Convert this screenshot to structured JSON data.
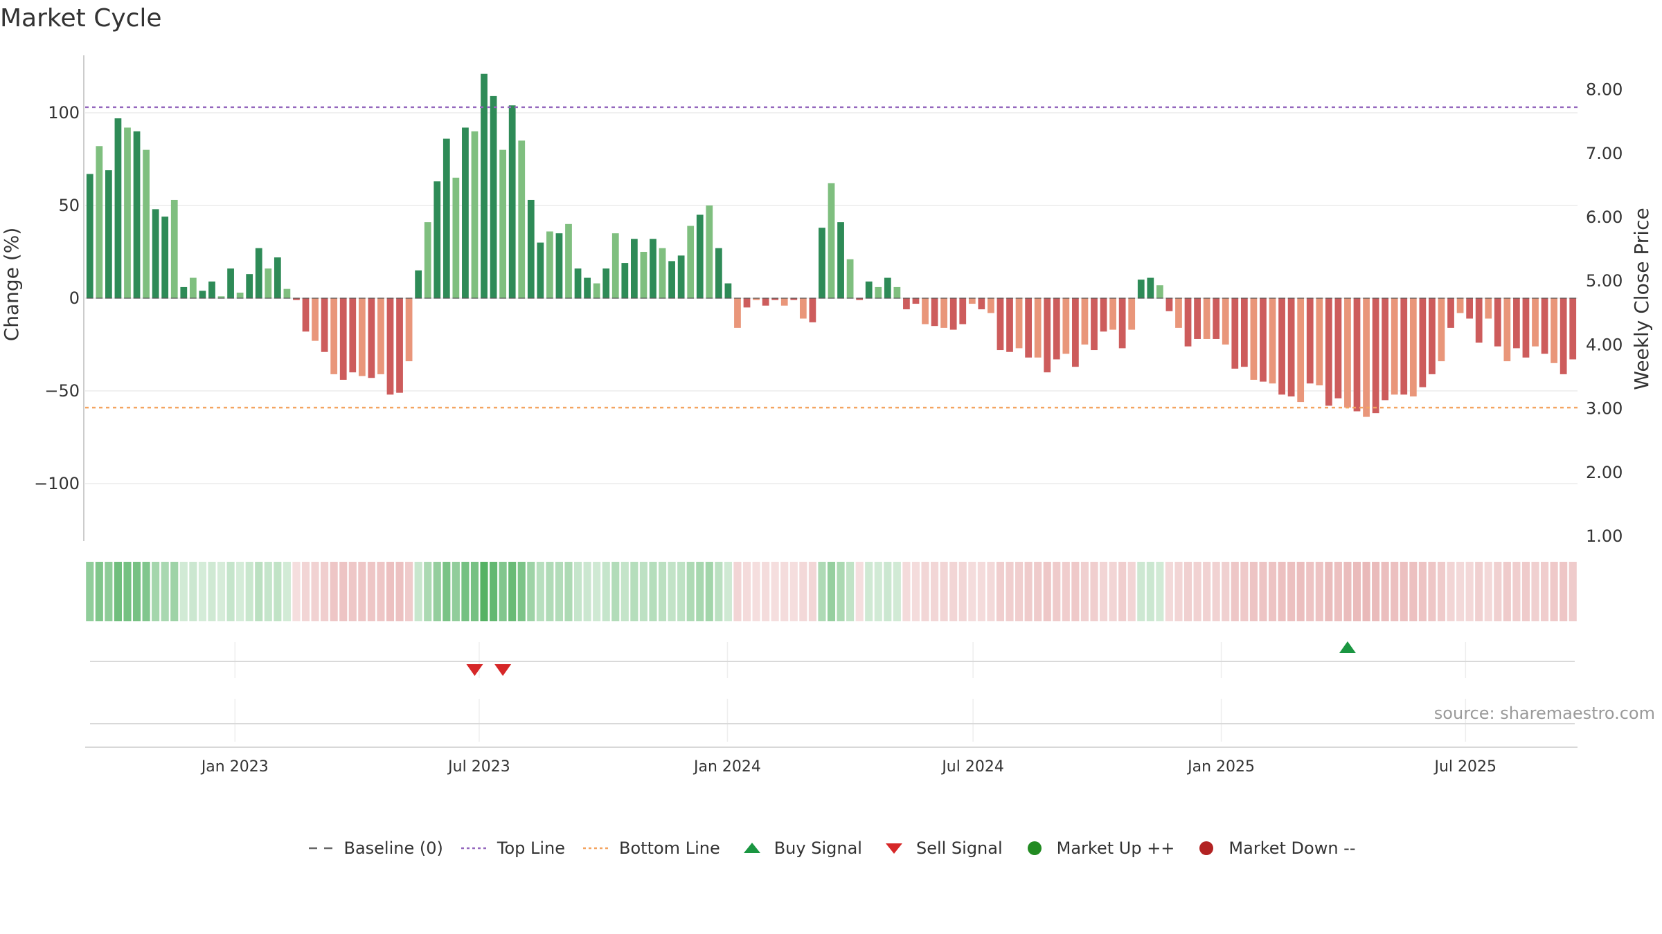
{
  "title": "Market Cycle",
  "source": "source: sharemaestro.com",
  "legend": [
    {
      "label": "Baseline (0)",
      "icon": "dashed-line-icon",
      "color": "#666666"
    },
    {
      "label": "Top Line",
      "icon": "dotted-line-icon",
      "color": "#9467bd"
    },
    {
      "label": "Bottom Line",
      "icon": "dotted-line-icon",
      "color": "#f4a460"
    },
    {
      "label": "Buy Signal",
      "icon": "triangle-up-icon",
      "color": "#1a9641"
    },
    {
      "label": "Sell Signal",
      "icon": "triangle-down-icon",
      "color": "#d62728"
    },
    {
      "label": "Market Up ++",
      "icon": "circle-icon",
      "color": "#228b22"
    },
    {
      "label": "Market Down --",
      "icon": "circle-icon",
      "color": "#b22222"
    }
  ],
  "chart_data": {
    "type": "bar",
    "title": "Market Cycle",
    "ylabel": "Change (%)",
    "y2label": "Weekly Close Price",
    "ylim": [
      -130,
      130
    ],
    "y_ticks": [
      -100,
      -50,
      0,
      50,
      100
    ],
    "y_tick_labels": [
      "−100",
      "−50",
      "0",
      "50",
      "100"
    ],
    "y2lim": [
      1.0,
      8.4
    ],
    "y2_ticks": [
      1.0,
      2.0,
      3.0,
      4.0,
      5.0,
      6.0,
      7.0,
      8.0
    ],
    "y2_tick_labels": [
      "1.00",
      "2.00",
      "3.00",
      "4.00",
      "5.00",
      "6.00",
      "7.00",
      "8.00"
    ],
    "x_start": "2022-09-12",
    "x_end": "2025-09-22",
    "x_ticks": [
      {
        "date": "2023-01-01",
        "label": "Jan 2023"
      },
      {
        "date": "2023-07-01",
        "label": "Jul 2023"
      },
      {
        "date": "2024-01-01",
        "label": "Jan 2024"
      },
      {
        "date": "2024-07-01",
        "label": "Jul 2024"
      },
      {
        "date": "2025-01-01",
        "label": "Jan 2025"
      },
      {
        "date": "2025-07-01",
        "label": "Jul 2025"
      }
    ],
    "top_line": 103,
    "bottom_line": -59,
    "baseline": 0,
    "grid": true,
    "legend_position": "bottom",
    "colors": {
      "pos_strong": "#2e8b57",
      "pos_light": "#7fbf7f",
      "neg_strong": "#cd5c5c",
      "neg_light": "#e9967a",
      "top_line": "#9467bd",
      "bottom_line": "#f4a460",
      "buy": "#1a9641",
      "sell": "#d62728"
    },
    "values": [
      67,
      82,
      69,
      97,
      92,
      90,
      80,
      48,
      44,
      53,
      6,
      11,
      4,
      9,
      1,
      16,
      3,
      13,
      27,
      16,
      22,
      5,
      -1,
      -18,
      -23,
      -29,
      -41,
      -44,
      -40,
      -42,
      -43,
      -41,
      -52,
      -51,
      -34,
      15,
      41,
      63,
      86,
      65,
      92,
      90,
      121,
      109,
      80,
      104,
      85,
      53,
      30,
      36,
      35,
      40,
      16,
      11,
      8,
      16,
      35,
      19,
      32,
      25,
      32,
      27,
      20,
      23,
      39,
      45,
      50,
      27,
      8,
      -16,
      -5,
      -1,
      -4,
      -1,
      -4,
      -1,
      -11,
      -13,
      38,
      62,
      41,
      21,
      -1,
      9,
      6,
      11,
      6,
      -6,
      -3,
      -14,
      -15,
      -16,
      -17,
      -14,
      -3,
      -6,
      -8,
      -28,
      -29,
      -27,
      -32,
      -32,
      -40,
      -33,
      -30,
      -37,
      -25,
      -28,
      -18,
      -17,
      -27,
      -17,
      10,
      11,
      7,
      -7,
      -16,
      -26,
      -22,
      -22,
      -22,
      -25,
      -38,
      -37,
      -44,
      -45,
      -46,
      -52,
      -53,
      -56,
      -46,
      -47,
      -58,
      -54,
      -59,
      -61,
      -64,
      -62,
      -55,
      -52,
      -52,
      -53,
      -48,
      -41,
      -34,
      -16,
      -8,
      -11,
      -24,
      -11,
      -26,
      -34,
      -27,
      -32,
      -26,
      -30,
      -35,
      -41,
      -33
    ],
    "signals": [
      {
        "type": "sell",
        "index": 41
      },
      {
        "type": "sell",
        "index": 44
      },
      {
        "type": "buy",
        "index": 134
      }
    ]
  }
}
